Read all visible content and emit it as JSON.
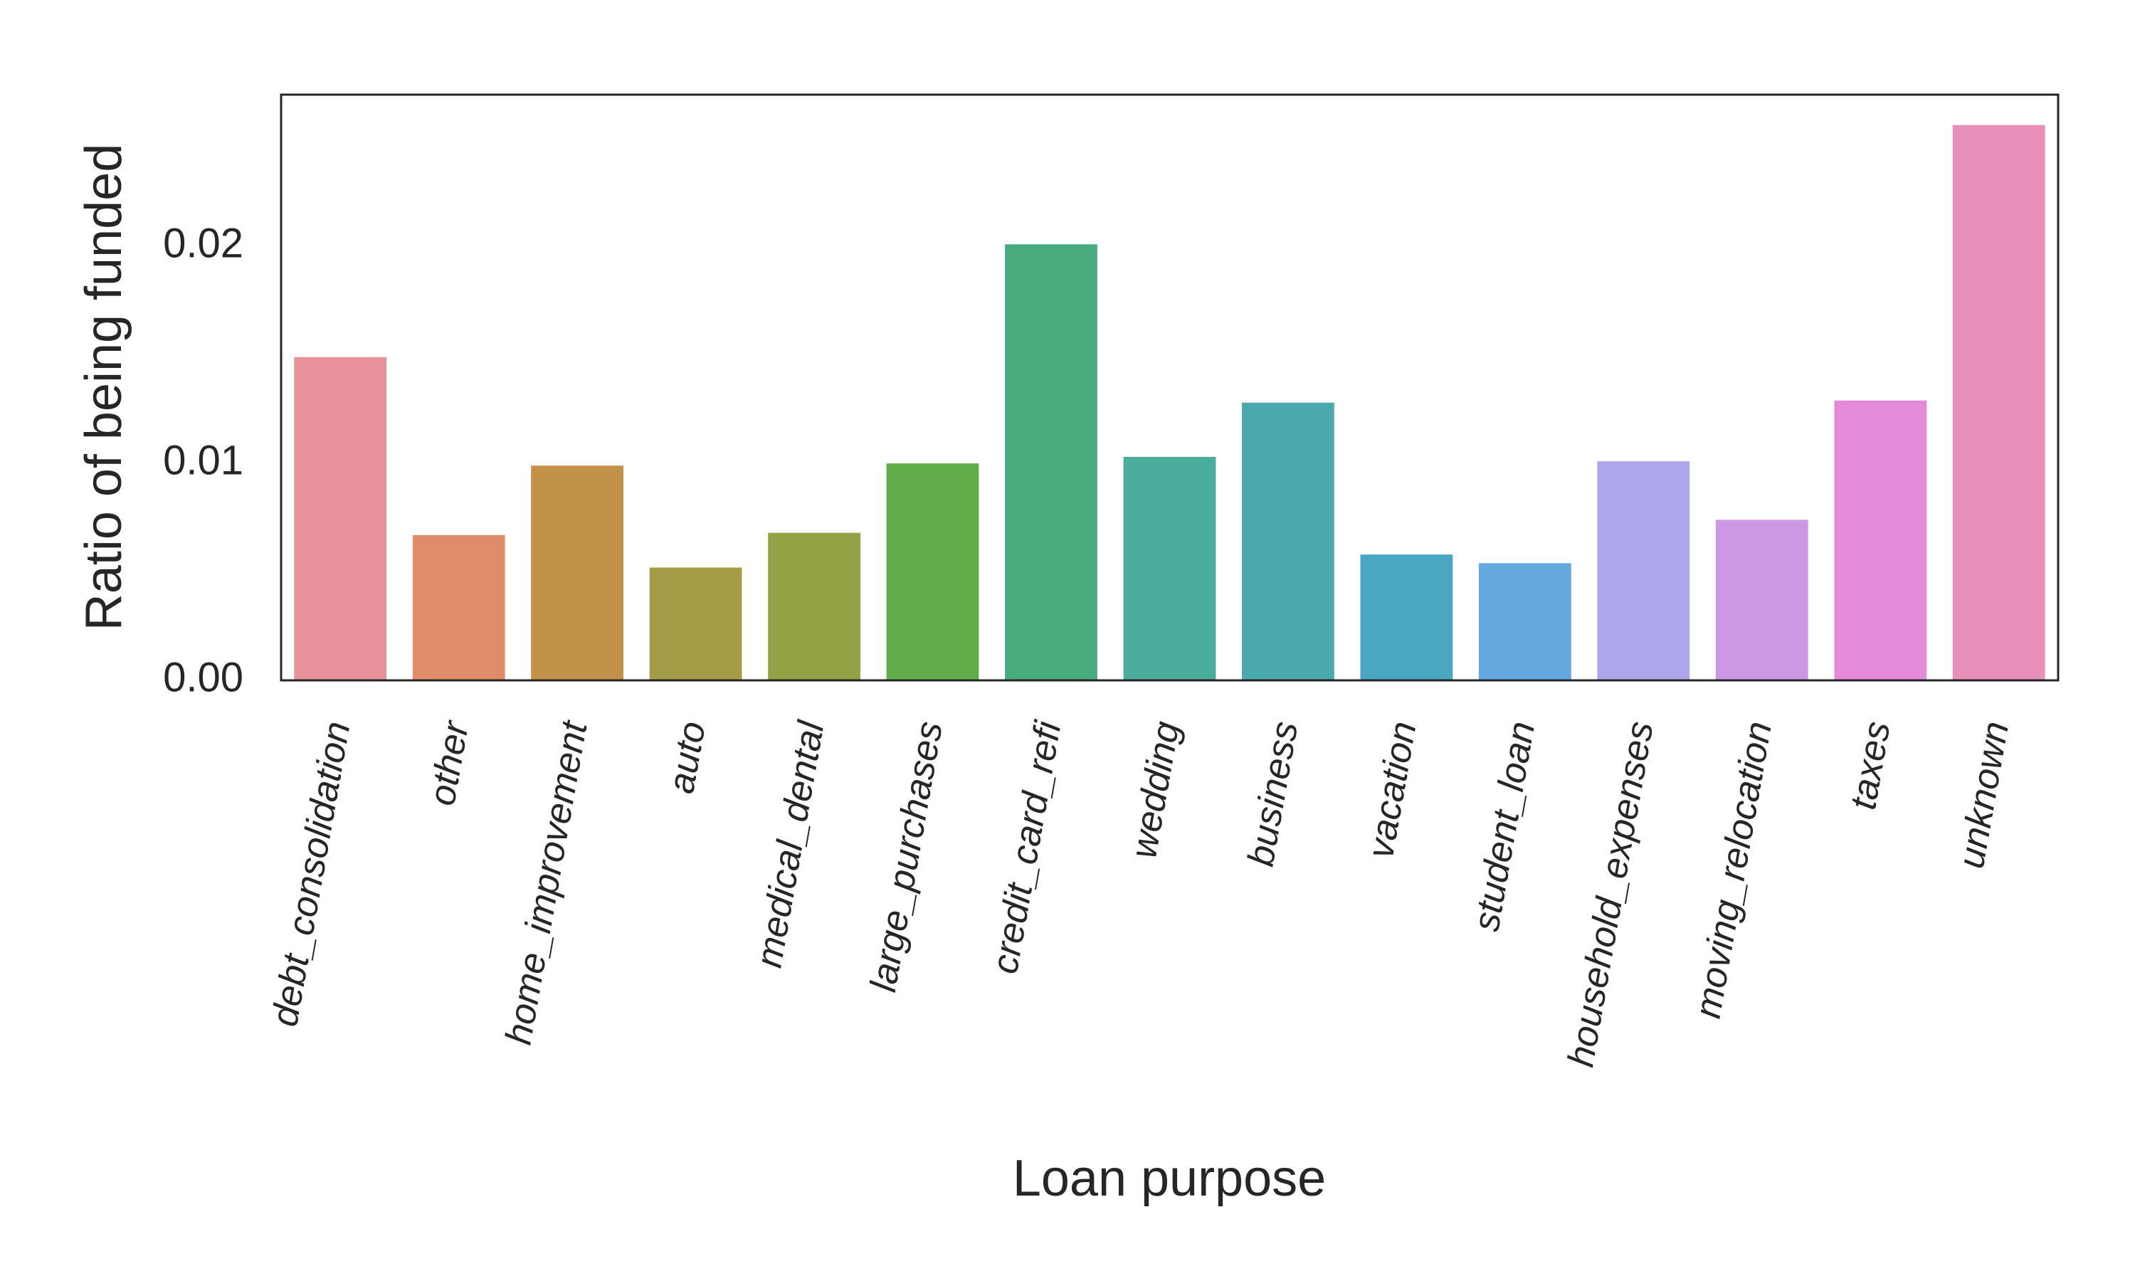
{
  "chart_data": {
    "type": "bar",
    "title": "",
    "xlabel": "Loan purpose",
    "ylabel": "Ratio of being funded",
    "ylim": [
      0,
      0.027
    ],
    "yticks": [
      0.0,
      0.01,
      0.02
    ],
    "ytick_labels": [
      "0.00",
      "0.01",
      "0.02"
    ],
    "grid": false,
    "categories": [
      "debt_consolidation",
      "other",
      "home_improvement",
      "auto",
      "medical_dental",
      "large_purchases",
      "credit_card_refi",
      "wedding",
      "business",
      "vacation",
      "student_loan",
      "household_expenses",
      "moving_relocation",
      "taxes",
      "unknown"
    ],
    "values": [
      0.0149,
      0.0067,
      0.0099,
      0.0052,
      0.0068,
      0.01,
      0.0201,
      0.0103,
      0.0128,
      0.0058,
      0.0054,
      0.0101,
      0.0074,
      0.0129,
      0.0256
    ],
    "colors": [
      "#e8919b",
      "#e08c6a",
      "#c2924a",
      "#a59c48",
      "#93a245",
      "#5fac48",
      "#48ac7e",
      "#4aac9a",
      "#4aa9ad",
      "#4aa7c2",
      "#63a8df",
      "#aea6ea",
      "#cc98e6",
      "#e58ad8",
      "#e88fba"
    ]
  }
}
